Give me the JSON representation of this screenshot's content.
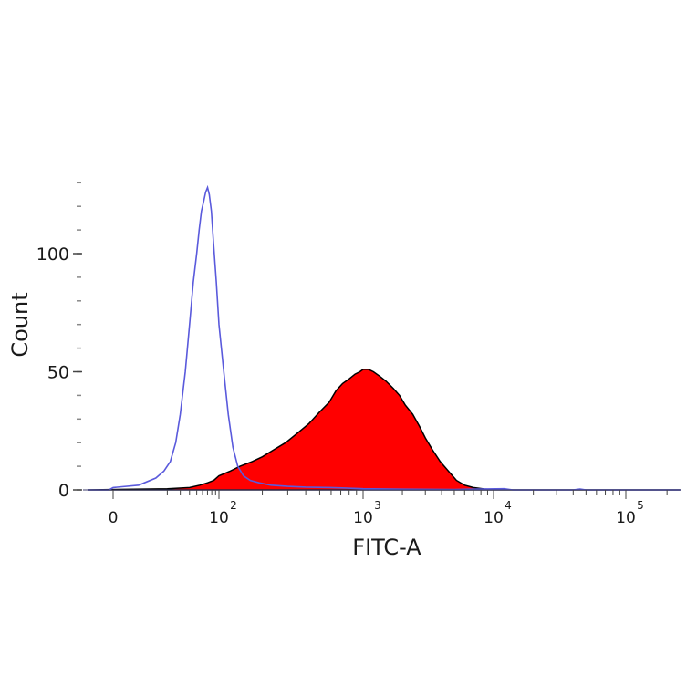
{
  "chart_data": {
    "type": "area",
    "title": "",
    "xlabel": "FITC-A",
    "ylabel": "Count",
    "x_scale": "biexponential",
    "xlim": [
      -30,
      250000
    ],
    "ylim": [
      0,
      130
    ],
    "x_ticks": [
      {
        "value": 0,
        "base": "0",
        "exp": ""
      },
      {
        "value": 100,
        "base": "10",
        "exp": "2"
      },
      {
        "value": 1000,
        "base": "10",
        "exp": "3"
      },
      {
        "value": 10000,
        "base": "10",
        "exp": "4"
      },
      {
        "value": 100000,
        "base": "10",
        "exp": "5"
      }
    ],
    "y_ticks": [
      0,
      50,
      100
    ],
    "grid": false,
    "legend": "none",
    "series": [
      {
        "style": "filled",
        "color": "#ff0000",
        "edge_color": "#000000",
        "points": [
          [
            -30,
            0
          ],
          [
            20,
            0.5
          ],
          [
            40,
            1
          ],
          [
            55,
            2
          ],
          [
            70,
            3
          ],
          [
            85,
            4
          ],
          [
            100,
            6
          ],
          [
            120,
            8
          ],
          [
            140,
            10
          ],
          [
            170,
            12
          ],
          [
            200,
            14
          ],
          [
            240,
            17
          ],
          [
            290,
            20
          ],
          [
            350,
            24
          ],
          [
            420,
            28
          ],
          [
            500,
            33
          ],
          [
            580,
            37
          ],
          [
            650,
            42
          ],
          [
            720,
            45
          ],
          [
            800,
            47
          ],
          [
            880,
            49
          ],
          [
            950,
            50
          ],
          [
            1000,
            51
          ],
          [
            1100,
            51
          ],
          [
            1200,
            50
          ],
          [
            1350,
            48
          ],
          [
            1500,
            46
          ],
          [
            1700,
            43
          ],
          [
            1900,
            40
          ],
          [
            2100,
            36
          ],
          [
            2400,
            32
          ],
          [
            2700,
            27
          ],
          [
            3000,
            22
          ],
          [
            3400,
            17
          ],
          [
            3900,
            12
          ],
          [
            4500,
            8
          ],
          [
            5200,
            4
          ],
          [
            6000,
            2
          ],
          [
            7000,
            1
          ],
          [
            8500,
            0.4
          ],
          [
            10000,
            0.1
          ],
          [
            12000,
            0
          ],
          [
            250000,
            0
          ]
        ]
      },
      {
        "style": "outline",
        "color": "#5a5adc",
        "points": [
          [
            -30,
            0
          ],
          [
            -5,
            0
          ],
          [
            0,
            1
          ],
          [
            8,
            2
          ],
          [
            14,
            5
          ],
          [
            18,
            8
          ],
          [
            22,
            12
          ],
          [
            26,
            20
          ],
          [
            30,
            32
          ],
          [
            35,
            50
          ],
          [
            40,
            70
          ],
          [
            45,
            88
          ],
          [
            50,
            100
          ],
          [
            54,
            110
          ],
          [
            58,
            118
          ],
          [
            62,
            122
          ],
          [
            66,
            126
          ],
          [
            70,
            128
          ],
          [
            74,
            125
          ],
          [
            79,
            118
          ],
          [
            85,
            103
          ],
          [
            92,
            88
          ],
          [
            100,
            70
          ],
          [
            108,
            50
          ],
          [
            116,
            32
          ],
          [
            125,
            18
          ],
          [
            135,
            10
          ],
          [
            148,
            6
          ],
          [
            165,
            4
          ],
          [
            190,
            3
          ],
          [
            230,
            2
          ],
          [
            300,
            1.5
          ],
          [
            400,
            1.2
          ],
          [
            600,
            1
          ],
          [
            1000,
            0.5
          ],
          [
            2000,
            0.3
          ],
          [
            5000,
            0.2
          ],
          [
            12000,
            0.5
          ],
          [
            14000,
            0
          ],
          [
            40000,
            0
          ],
          [
            45000,
            0.4
          ],
          [
            50000,
            0
          ],
          [
            250000,
            0
          ]
        ]
      }
    ]
  }
}
